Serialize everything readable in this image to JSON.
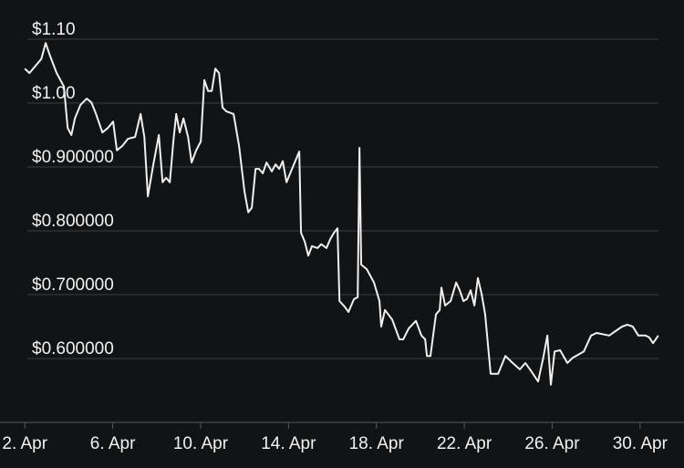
{
  "chart_data": {
    "type": "line",
    "x": [
      2.0,
      2.21,
      2.75,
      2.95,
      3.16,
      3.45,
      3.78,
      3.95,
      4.12,
      4.28,
      4.53,
      4.82,
      5.03,
      5.24,
      5.53,
      5.78,
      6.02,
      6.19,
      6.44,
      6.69,
      7.02,
      7.27,
      7.44,
      7.6,
      7.85,
      8.1,
      8.27,
      8.43,
      8.6,
      8.76,
      8.89,
      9.05,
      9.22,
      9.43,
      9.59,
      9.8,
      10.01,
      10.17,
      10.34,
      10.51,
      10.67,
      10.84,
      11.0,
      11.17,
      11.5,
      11.75,
      12.0,
      12.17,
      12.33,
      12.5,
      12.66,
      12.83,
      13.0,
      13.24,
      13.41,
      13.58,
      13.74,
      13.91,
      14.16,
      14.49,
      14.57,
      14.74,
      14.9,
      15.07,
      15.32,
      15.49,
      15.73,
      15.9,
      16.07,
      16.23,
      16.32,
      16.56,
      16.73,
      16.98,
      17.15,
      17.23,
      17.31,
      17.56,
      17.89,
      18.14,
      18.22,
      18.39,
      18.72,
      19.05,
      19.22,
      19.47,
      19.8,
      20.05,
      20.22,
      20.3,
      20.46,
      20.71,
      20.88,
      20.96,
      21.13,
      21.38,
      21.63,
      21.79,
      21.96,
      22.12,
      22.29,
      22.46,
      22.62,
      22.79,
      22.95,
      23.2,
      23.54,
      23.87,
      24.2,
      24.53,
      24.78,
      25.03,
      25.36,
      25.61,
      25.78,
      25.94,
      26.11,
      26.36,
      26.69,
      26.93,
      27.44,
      27.77,
      28.02,
      28.6,
      28.76,
      29.18,
      29.42,
      29.67,
      29.92,
      30.25,
      30.42,
      30.59,
      30.83
    ],
    "series": [
      {
        "color": "#f0f0f0",
        "values": [
          1.054,
          1.047,
          1.069,
          1.094,
          1.073,
          1.047,
          1.026,
          0.961,
          0.95,
          0.976,
          0.997,
          1.007,
          1.001,
          0.983,
          0.954,
          0.961,
          0.971,
          0.926,
          0.933,
          0.944,
          0.947,
          0.983,
          0.947,
          0.854,
          0.904,
          0.95,
          0.876,
          0.883,
          0.876,
          0.94,
          0.983,
          0.954,
          0.976,
          0.947,
          0.907,
          0.926,
          0.94,
          1.036,
          1.019,
          1.019,
          1.054,
          1.047,
          0.993,
          0.987,
          0.983,
          0.933,
          0.861,
          0.829,
          0.836,
          0.897,
          0.897,
          0.89,
          0.907,
          0.893,
          0.904,
          0.897,
          0.909,
          0.876,
          0.897,
          0.924,
          0.797,
          0.783,
          0.761,
          0.776,
          0.773,
          0.779,
          0.773,
          0.787,
          0.797,
          0.804,
          0.69,
          0.681,
          0.673,
          0.693,
          0.696,
          0.93,
          0.747,
          0.74,
          0.719,
          0.69,
          0.65,
          0.676,
          0.661,
          0.63,
          0.63,
          0.647,
          0.659,
          0.636,
          0.63,
          0.604,
          0.604,
          0.669,
          0.676,
          0.711,
          0.683,
          0.69,
          0.719,
          0.707,
          0.69,
          0.693,
          0.707,
          0.683,
          0.726,
          0.701,
          0.669,
          0.576,
          0.576,
          0.604,
          0.593,
          0.583,
          0.593,
          0.581,
          0.564,
          0.604,
          0.636,
          0.559,
          0.611,
          0.613,
          0.593,
          0.601,
          0.611,
          0.636,
          0.64,
          0.636,
          0.64,
          0.65,
          0.653,
          0.65,
          0.636,
          0.636,
          0.633,
          0.624,
          0.636
        ]
      }
    ],
    "xlim": [
      1.95,
      30.92
    ],
    "xticks": [
      {
        "value": 2,
        "label": "2. Apr"
      },
      {
        "value": 6,
        "label": "6. Apr"
      },
      {
        "value": 10,
        "label": "10. Apr"
      },
      {
        "value": 14,
        "label": "14. Apr"
      },
      {
        "value": 18,
        "label": "18. Apr"
      },
      {
        "value": 22,
        "label": "22. Apr"
      },
      {
        "value": 26,
        "label": "26. Apr"
      },
      {
        "value": 30,
        "label": "30. Apr"
      }
    ],
    "ylim": [
      0.5,
      1.16
    ],
    "yticks": [
      {
        "value": 0.6,
        "label": "$0.600000"
      },
      {
        "value": 0.7,
        "label": "$0.700000"
      },
      {
        "value": 0.8,
        "label": "$0.800000"
      },
      {
        "value": 0.9,
        "label": "$0.900000"
      },
      {
        "value": 1.0,
        "label": "$1.00"
      },
      {
        "value": 1.1,
        "label": "$1.10"
      }
    ],
    "grid": true
  }
}
